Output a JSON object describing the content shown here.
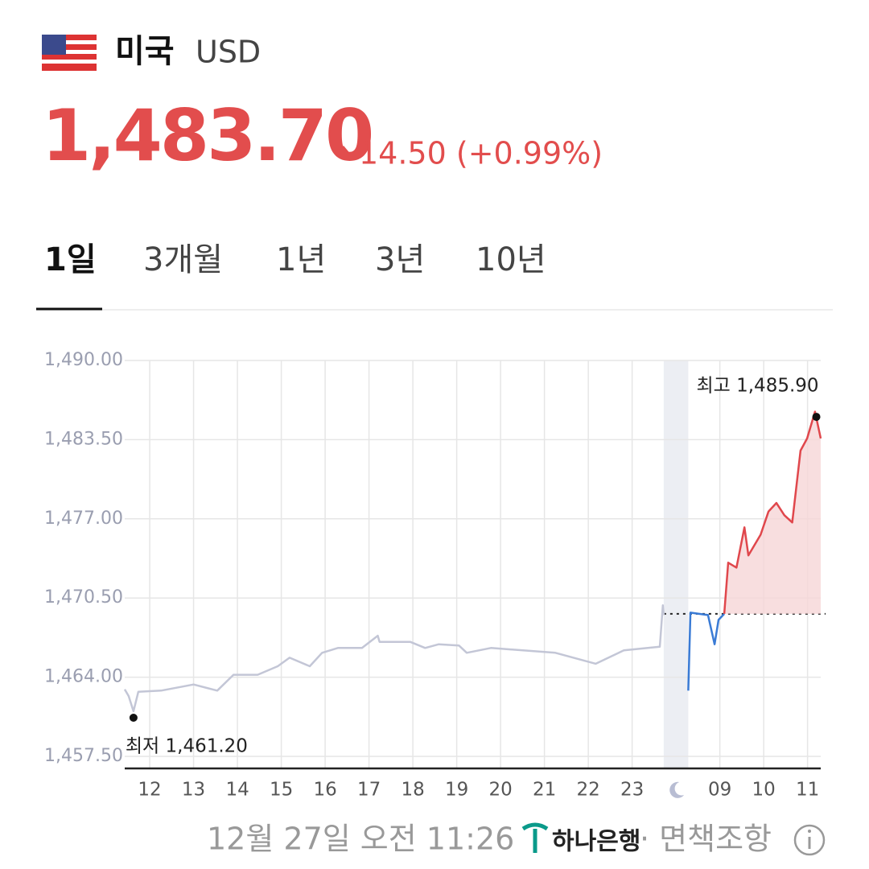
{
  "header": {
    "country": "미국",
    "currency": "USD",
    "price": "1,483.70",
    "change": "14.50 (+0.99%)"
  },
  "tabs": {
    "items": [
      "1일",
      "3개월",
      "1년",
      "3년",
      "10년"
    ],
    "active": 0
  },
  "chart_data": {
    "type": "line",
    "xlim": [
      -0.57,
      15.3
    ],
    "xticks": [
      {
        "value": 0,
        "label": "12"
      },
      {
        "value": 1,
        "label": "13"
      },
      {
        "value": 2,
        "label": "14"
      },
      {
        "value": 3,
        "label": "15"
      },
      {
        "value": 4,
        "label": "16"
      },
      {
        "value": 5,
        "label": "17"
      },
      {
        "value": 6,
        "label": "18"
      },
      {
        "value": 7,
        "label": "19"
      },
      {
        "value": 8,
        "label": "20"
      },
      {
        "value": 9,
        "label": "21"
      },
      {
        "value": 10,
        "label": "22"
      },
      {
        "value": 11,
        "label": "23"
      },
      {
        "value": 13,
        "label": "09"
      },
      {
        "value": 14,
        "label": "10"
      },
      {
        "value": 15,
        "label": "11"
      }
    ],
    "ylim": [
      1457.5,
      1490
    ],
    "yticks": [
      {
        "value": 1457.5,
        "label": "1,457.50"
      },
      {
        "value": 1464,
        "label": "1,464.00"
      },
      {
        "value": 1470.5,
        "label": "1,470.50"
      },
      {
        "value": 1477,
        "label": "1,477.00"
      },
      {
        "value": 1483.5,
        "label": "1,483.50"
      },
      {
        "value": 1490,
        "label": "1,490.00"
      }
    ],
    "grid": true,
    "night_band": [
      11.72,
      12.28
    ],
    "reference": 1469.2,
    "series": [
      {
        "color": "#c3c6d6",
        "x": [
          -0.57,
          -0.48,
          -0.37,
          -0.26,
          0.26,
          1.0,
          1.54,
          1.91,
          2.46,
          2.92,
          3.19,
          3.65,
          3.93,
          4.29,
          4.84,
          5.2,
          5.24,
          5.94,
          6.28,
          6.59,
          7.05,
          7.23,
          7.78,
          9.25,
          10.17,
          10.81,
          11.63,
          11.7,
          11.72
        ],
        "values": [
          1463.0,
          1462.45,
          1461.2,
          1462.8,
          1462.9,
          1463.4,
          1462.9,
          1464.2,
          1464.2,
          1464.9,
          1465.6,
          1464.9,
          1466.0,
          1466.4,
          1466.4,
          1467.4,
          1466.9,
          1466.9,
          1466.4,
          1466.7,
          1466.6,
          1466.0,
          1466.4,
          1466.0,
          1465.1,
          1466.2,
          1466.5,
          1469.9,
          1469.1
        ]
      },
      {
        "color": "#3a7bd5",
        "x": [
          12.28,
          12.33,
          12.73,
          12.88,
          12.97,
          13.1
        ],
        "values": [
          1462.9,
          1469.3,
          1469.1,
          1466.7,
          1468.7,
          1469.2
        ]
      },
      {
        "color": "#e0474c",
        "area": "#f6d6d7",
        "x": [
          13.1,
          13.19,
          13.38,
          13.56,
          13.65,
          13.93,
          14.11,
          14.29,
          14.47,
          14.65,
          14.84,
          14.99,
          15.17,
          15.3
        ],
        "values": [
          1469.2,
          1473.4,
          1473.0,
          1476.3,
          1474.0,
          1475.7,
          1477.6,
          1478.3,
          1477.3,
          1476.7,
          1482.6,
          1483.6,
          1485.8,
          1483.6
        ]
      }
    ],
    "annotations": [
      {
        "text": "최고 1,485.90",
        "x": 15.2,
        "value": 1485.9
      },
      {
        "text": "최저 1,461.20",
        "x": -0.37,
        "value": 1461.2
      }
    ]
  },
  "footer": {
    "time": "12월 27일 오전 11:26",
    "bank": "하나은행",
    "disclaimer": "· 면책조항"
  }
}
